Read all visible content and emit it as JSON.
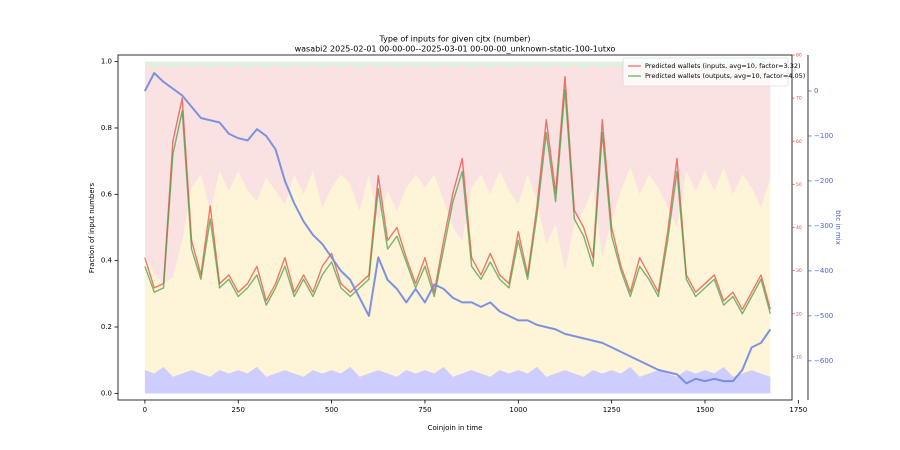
{
  "chart_data": {
    "type": "line",
    "title": "Type of inputs for given cjtx (number)",
    "subtitle": "wasabi2 2025-02-01 00-00-00--2025-03-01 00-00-00_unknown-static-100-1utxo",
    "x_label": "Coinjoin in time",
    "y_label": "Fraction of input numbers",
    "y3_label": "btc in mix",
    "legend": "upper right",
    "xlim": [
      -72,
      1733
    ],
    "xticks": [
      0,
      250,
      500,
      750,
      1000,
      1250,
      1500,
      1750
    ],
    "ylim": [
      -0.02,
      1.02
    ],
    "yticks": [
      {
        "value": 0,
        "label": "0.0"
      },
      0.2,
      0.4,
      0.6,
      0.8,
      {
        "value": 1,
        "label": "1.0"
      }
    ],
    "y2lim": [
      0,
      80
    ],
    "y2ticks": [
      10,
      20,
      30,
      40,
      50,
      60,
      70,
      80
    ],
    "y2color": "#e8433a",
    "y3lim": [
      -687,
      80
    ],
    "y3ticks": [
      {
        "value": 0,
        "label": "0"
      },
      {
        "value": -100,
        "label": "−100"
      },
      {
        "value": -200,
        "label": "−200"
      },
      {
        "value": -300,
        "label": "−300"
      },
      {
        "value": -400,
        "label": "−400"
      },
      {
        "value": -500,
        "label": "−500"
      },
      {
        "value": -600,
        "label": "−600"
      }
    ],
    "y3color": "#4b66d8",
    "x": [
      0,
      25,
      50,
      75,
      100,
      125,
      150,
      175,
      200,
      225,
      250,
      275,
      300,
      325,
      350,
      375,
      400,
      425,
      450,
      475,
      500,
      525,
      550,
      575,
      600,
      625,
      650,
      675,
      700,
      725,
      750,
      775,
      800,
      825,
      850,
      875,
      900,
      925,
      950,
      975,
      1000,
      1025,
      1050,
      1075,
      1100,
      1125,
      1150,
      1175,
      1200,
      1225,
      1250,
      1275,
      1300,
      1325,
      1350,
      1375,
      1400,
      1425,
      1450,
      1475,
      1500,
      1525,
      1550,
      1575,
      1600,
      1625,
      1650,
      1675
    ],
    "areas": [
      {
        "color": "#5a5aff",
        "values": [
          0.07,
          0.06,
          0.08,
          0.05,
          0.06,
          0.07,
          0.06,
          0.05,
          0.07,
          0.06,
          0.07,
          0.06,
          0.08,
          0.05,
          0.06,
          0.07,
          0.06,
          0.05,
          0.07,
          0.06,
          0.07,
          0.06,
          0.08,
          0.05,
          0.06,
          0.07,
          0.06,
          0.05,
          0.07,
          0.06,
          0.07,
          0.06,
          0.08,
          0.05,
          0.06,
          0.07,
          0.06,
          0.05,
          0.07,
          0.06,
          0.07,
          0.06,
          0.08,
          0.05,
          0.06,
          0.07,
          0.06,
          0.05,
          0.07,
          0.06,
          0.07,
          0.06,
          0.08,
          0.05,
          0.06,
          0.07,
          0.06,
          0.05,
          0.07,
          0.06,
          0.07,
          0.06,
          0.08,
          0.05,
          0.06,
          0.07,
          0.06,
          0.05
        ]
      },
      {
        "color": "#fbd97a",
        "values": [
          0.35,
          0.3,
          0.25,
          0.3,
          0.4,
          0.55,
          0.6,
          0.5,
          0.6,
          0.55,
          0.6,
          0.55,
          0.5,
          0.6,
          0.55,
          0.5,
          0.6,
          0.55,
          0.6,
          0.5,
          0.55,
          0.6,
          0.55,
          0.5,
          0.6,
          0.45,
          0.55,
          0.5,
          0.55,
          0.6,
          0.55,
          0.6,
          0.5,
          0.45,
          0.4,
          0.55,
          0.6,
          0.55,
          0.6,
          0.55,
          0.5,
          0.6,
          0.5,
          0.4,
          0.45,
          0.3,
          0.45,
          0.5,
          0.55,
          0.35,
          0.45,
          0.55,
          0.6,
          0.55,
          0.6,
          0.55,
          0.5,
          0.45,
          0.6,
          0.55,
          0.6,
          0.55,
          0.6,
          0.55,
          0.6,
          0.55,
          0.5,
          0.6
        ]
      },
      {
        "color": "#f3a0a0",
        "values": [
          0.57,
          0.62,
          0.66,
          0.63,
          0.53,
          0.36,
          0.33,
          0.43,
          0.32,
          0.37,
          0.32,
          0.37,
          0.41,
          0.33,
          0.38,
          0.41,
          0.33,
          0.38,
          0.32,
          0.42,
          0.37,
          0.32,
          0.36,
          0.43,
          0.33,
          0.46,
          0.38,
          0.43,
          0.37,
          0.32,
          0.37,
          0.32,
          0.41,
          0.48,
          0.53,
          0.36,
          0.33,
          0.38,
          0.32,
          0.37,
          0.42,
          0.32,
          0.41,
          0.53,
          0.48,
          0.61,
          0.48,
          0.43,
          0.37,
          0.57,
          0.47,
          0.37,
          0.31,
          0.38,
          0.33,
          0.36,
          0.43,
          0.48,
          0.32,
          0.37,
          0.32,
          0.37,
          0.31,
          0.38,
          0.33,
          0.36,
          0.43,
          0.33
        ]
      },
      {
        "color": "#8fd08f",
        "values": [
          0.01,
          0.02,
          0.01,
          0.02,
          0.01,
          0.02,
          0.01,
          0.02,
          0.01,
          0.02,
          0.01,
          0.02,
          0.01,
          0.02,
          0.01,
          0.02,
          0.01,
          0.02,
          0.01,
          0.02,
          0.01,
          0.02,
          0.01,
          0.02,
          0.01,
          0.02,
          0.01,
          0.02,
          0.01,
          0.02,
          0.01,
          0.02,
          0.01,
          0.02,
          0.01,
          0.02,
          0.01,
          0.02,
          0.01,
          0.02,
          0.01,
          0.02,
          0.01,
          0.02,
          0.01,
          0.02,
          0.01,
          0.02,
          0.01,
          0.02,
          0.01,
          0.02,
          0.01,
          0.02,
          0.01,
          0.02,
          0.01,
          0.02,
          0.01,
          0.02,
          0.01,
          0.02,
          0.01,
          0.02,
          0.01,
          0.02,
          0.01,
          0.02
        ]
      }
    ],
    "series": [
      {
        "name": "Predicted wallets (inputs, avg=10, factor=3.32)",
        "color": "#e8433a",
        "axis": "y2",
        "values": [
          33,
          26,
          27,
          60,
          70,
          37,
          29,
          45,
          27,
          29,
          25,
          27,
          31,
          23,
          27,
          33,
          25,
          29,
          25,
          31,
          34,
          27,
          25,
          27,
          29,
          52,
          37,
          40,
          33,
          27,
          33,
          25,
          37,
          48,
          56,
          33,
          29,
          34,
          29,
          27,
          39,
          29,
          45,
          65,
          48,
          75,
          44,
          40,
          33,
          65,
          40,
          31,
          25,
          33,
          29,
          25,
          39,
          56,
          29,
          25,
          27,
          29,
          23,
          25,
          21,
          25,
          29,
          21
        ]
      },
      {
        "name": "Predicted wallets (outputs, avg=10, factor=4.05)",
        "color": "#3f9a3f",
        "axis": "y2",
        "values": [
          31,
          25,
          26,
          57,
          67,
          35,
          28,
          42,
          26,
          28,
          24,
          26,
          29,
          22,
          26,
          31,
          24,
          28,
          24,
          29,
          32,
          26,
          24,
          26,
          28,
          49,
          35,
          38,
          32,
          26,
          31,
          24,
          35,
          46,
          53,
          31,
          28,
          32,
          28,
          26,
          37,
          28,
          43,
          62,
          46,
          72,
          42,
          38,
          31,
          62,
          38,
          30,
          24,
          31,
          28,
          24,
          37,
          53,
          28,
          24,
          26,
          28,
          22,
          24,
          20,
          24,
          28,
          20
        ]
      },
      {
        "color": "#6f88e2",
        "axis": "y3",
        "values": [
          0,
          40,
          20,
          5,
          -10,
          -35,
          -60,
          -65,
          -70,
          -95,
          -105,
          -110,
          -85,
          -100,
          -130,
          -200,
          -250,
          -290,
          -320,
          -340,
          -370,
          -400,
          -420,
          -460,
          -500,
          -370,
          -420,
          -440,
          -470,
          -440,
          -470,
          -430,
          -440,
          -460,
          -470,
          -470,
          -480,
          -470,
          -490,
          -500,
          -510,
          -510,
          -520,
          -525,
          -530,
          -540,
          -545,
          -550,
          -555,
          -560,
          -570,
          -580,
          -590,
          -600,
          -610,
          -620,
          -625,
          -630,
          -650,
          -640,
          -645,
          -640,
          -645,
          -645,
          -620,
          -570,
          -560,
          -530
        ]
      }
    ]
  }
}
